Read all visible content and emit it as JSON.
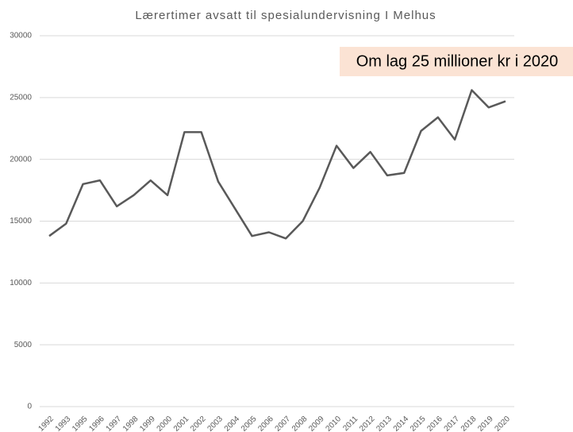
{
  "chart_data": {
    "type": "line",
    "title": "Lærertimer avsatt til spesialundervisning I Melhus",
    "annotation": "Om lag 25 millioner kr i 2020",
    "categories": [
      "1992",
      "1993",
      "1995",
      "1996",
      "1997",
      "1998",
      "1999",
      "2000",
      "2001",
      "2002",
      "2003",
      "2004",
      "2005",
      "2006",
      "2007",
      "2008",
      "2009",
      "2010",
      "2011",
      "2012",
      "2013",
      "2014",
      "2015",
      "2016",
      "2017",
      "2018",
      "2019",
      "2020"
    ],
    "values": [
      13800,
      14800,
      18000,
      18300,
      16200,
      17100,
      18300,
      17100,
      22200,
      22200,
      18200,
      16000,
      13800,
      14100,
      13600,
      15000,
      17700,
      21100,
      19300,
      20600,
      18700,
      18900,
      22300,
      23400,
      21600,
      25600,
      24200,
      24700
    ],
    "color": "#595959",
    "ylim": [
      0,
      30000
    ],
    "yticks": [
      0,
      5000,
      10000,
      15000,
      20000,
      25000,
      30000
    ],
    "grid": true
  }
}
